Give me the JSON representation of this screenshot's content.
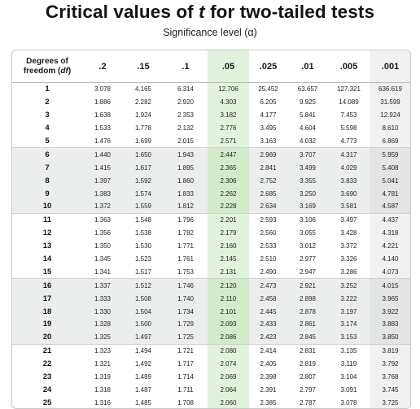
{
  "title": {
    "prefix": "Critical values of ",
    "variable": "t",
    "suffix": " for two-tailed tests"
  },
  "subtitle": "Significance level (α)",
  "header": {
    "df_line1": "Degrees of",
    "df_line2": "freedom (",
    "df_var": "df",
    "df_close": ")"
  },
  "columns": [
    ".2",
    ".15",
    ".1",
    ".05",
    ".025",
    ".01",
    ".005",
    ".001"
  ],
  "rows": [
    {
      "df": "1",
      "values": [
        "3.078",
        "4.165",
        "6.314",
        "12.706",
        "25.452",
        "63.657",
        "127.321",
        "636.619"
      ]
    },
    {
      "df": "2",
      "values": [
        "1.886",
        "2.282",
        "2.920",
        "4.303",
        "6.205",
        "9.925",
        "14.089",
        "31.599"
      ]
    },
    {
      "df": "3",
      "values": [
        "1.638",
        "1.924",
        "2.353",
        "3.182",
        "4.177",
        "5.841",
        "7.453",
        "12.924"
      ]
    },
    {
      "df": "4",
      "values": [
        "1.533",
        "1.778",
        "2.132",
        "2.776",
        "3.495",
        "4.604",
        "5.598",
        "8.610"
      ]
    },
    {
      "df": "5",
      "values": [
        "1.476",
        "1.699",
        "2.015",
        "2.571",
        "3.163",
        "4.032",
        "4.773",
        "6.869"
      ]
    },
    {
      "df": "6",
      "values": [
        "1.440",
        "1.650",
        "1.943",
        "2.447",
        "2.969",
        "3.707",
        "4.317",
        "5.959"
      ]
    },
    {
      "df": "7",
      "values": [
        "1.415",
        "1.617",
        "1.895",
        "2.365",
        "2.841",
        "3.499",
        "4.029",
        "5.408"
      ]
    },
    {
      "df": "8",
      "values": [
        "1.397",
        "1.592",
        "1.860",
        "2.306",
        "2.752",
        "3.355",
        "3.833",
        "5.041"
      ]
    },
    {
      "df": "9",
      "values": [
        "1.383",
        "1.574",
        "1.833",
        "2.262",
        "2.685",
        "3.250",
        "3.690",
        "4.781"
      ]
    },
    {
      "df": "10",
      "values": [
        "1.372",
        "1.559",
        "1.812",
        "2.228",
        "2.634",
        "3.169",
        "3.581",
        "4.587"
      ]
    },
    {
      "df": "11",
      "values": [
        "1.363",
        "1.548",
        "1.796",
        "2.201",
        "2.593",
        "3.106",
        "3.497",
        "4.437"
      ]
    },
    {
      "df": "12",
      "values": [
        "1.356",
        "1.538",
        "1.782",
        "2.179",
        "2.560",
        "3.055",
        "3.428",
        "4.318"
      ]
    },
    {
      "df": "13",
      "values": [
        "1.350",
        "1.530",
        "1.771",
        "2.160",
        "2.533",
        "3.012",
        "3.372",
        "4.221"
      ]
    },
    {
      "df": "14",
      "values": [
        "1.345",
        "1.523",
        "1.761",
        "2.145",
        "2.510",
        "2.977",
        "3.326",
        "4.140"
      ]
    },
    {
      "df": "15",
      "values": [
        "1.341",
        "1.517",
        "1.753",
        "2.131",
        "2.490",
        "2.947",
        "3.286",
        "4.073"
      ]
    },
    {
      "df": "16",
      "values": [
        "1.337",
        "1.512",
        "1.746",
        "2.120",
        "2.473",
        "2.921",
        "3.252",
        "4.015"
      ]
    },
    {
      "df": "17",
      "values": [
        "1.333",
        "1.508",
        "1.740",
        "2.110",
        "2.458",
        "2.898",
        "3.222",
        "3.965"
      ]
    },
    {
      "df": "18",
      "values": [
        "1.330",
        "1.504",
        "1.734",
        "2.101",
        "2.445",
        "2.878",
        "3.197",
        "3.922"
      ]
    },
    {
      "df": "19",
      "values": [
        "1.328",
        "1.500",
        "1.729",
        "2.093",
        "2.433",
        "2.861",
        "3.174",
        "3.883"
      ]
    },
    {
      "df": "20",
      "values": [
        "1.325",
        "1.497",
        "1.725",
        "2.086",
        "2.423",
        "2.845",
        "3.153",
        "3.850"
      ]
    },
    {
      "df": "21",
      "values": [
        "1.323",
        "1.494",
        "1.721",
        "2.080",
        "2.414",
        "2.831",
        "3.135",
        "3.819"
      ]
    },
    {
      "df": "22",
      "values": [
        "1.321",
        "1.492",
        "1.717",
        "2.074",
        "2.405",
        "2.819",
        "3.119",
        "3.792"
      ]
    },
    {
      "df": "23",
      "values": [
        "1.319",
        "1.489",
        "1.714",
        "2.069",
        "2.398",
        "2.807",
        "3.104",
        "3.768"
      ]
    },
    {
      "df": "24",
      "values": [
        "1.318",
        "1.487",
        "1.711",
        "2.064",
        "2.391",
        "2.797",
        "3.091",
        "3.745"
      ]
    },
    {
      "df": "25",
      "values": [
        "1.316",
        "1.485",
        "1.708",
        "2.060",
        "2.385",
        "2.787",
        "3.078",
        "3.725"
      ]
    }
  ],
  "colors": {
    "highlight_column": "#e1f3dc",
    "shaded_rows": "#eceeee",
    "border": "#c9c9c9"
  }
}
